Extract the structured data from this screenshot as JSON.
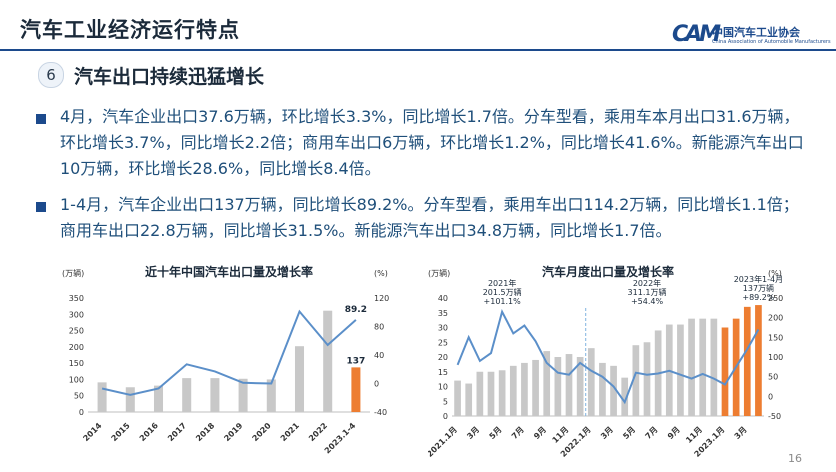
{
  "header": {
    "title": "汽车工业经济运行特点",
    "logo_cn": "中国汽车工业协会",
    "logo_en": "China Association of Automobile Manufacturers",
    "logo_mark": "CAM"
  },
  "section": {
    "number": "6",
    "title": "汽车出口持续迅猛增长"
  },
  "paragraphs": [
    "4月，汽车企业出口37.6万辆，环比增长3.3%，同比增长1.7倍。分车型看，乘用车本月出口31.6万辆，环比增长3.7%，同比增长2.2倍；商用车出口6万辆，环比增长1.2%，同比增长41.6%。新能源汽车出口10万辆，环比增长28.6%，同比增长8.4倍。",
    "1-4月，汽车企业出口137万辆，同比增长89.2%。分车型看，乘用车出口114.2万辆，同比增长1.1倍；商用车出口22.8万辆，同比增长31.5%。新能源汽车出口34.8万辆，同比增长1.7倍。"
  ],
  "page_number": "16",
  "colors": {
    "bar": "#c8c8c8",
    "bar_highlight": "#ed7d31",
    "line": "#5b8fc9",
    "brand": "#1c4a8c"
  },
  "chart_data": [
    {
      "type": "bar",
      "title": "近十年中国汽车出口量及增长率",
      "y_left_unit": "(万辆)",
      "y_right_unit": "(%)",
      "ylim_left": [
        0,
        350
      ],
      "yticks_left": [
        "350",
        "300",
        "250",
        "200",
        "150",
        "100",
        "50",
        "0"
      ],
      "ylim_right": [
        -40,
        120
      ],
      "yticks_right": [
        "120",
        "80",
        "40",
        "0",
        "-40"
      ],
      "categories": [
        "2014",
        "2015",
        "2016",
        "2017",
        "2018",
        "2019",
        "2020",
        "2021",
        "2022",
        "2023.1-4"
      ],
      "series": [
        {
          "kind": "bar",
          "axis": "left",
          "values": [
            91,
            76,
            81,
            104,
            104,
            102,
            100,
            202,
            311,
            137
          ]
        },
        {
          "kind": "line",
          "axis": "right",
          "values": [
            -7,
            -16,
            -7,
            27,
            17,
            1,
            0,
            101,
            54,
            89.2
          ]
        }
      ],
      "annotations": {
        "last_bar_label": "137",
        "last_line_label": "89.2"
      }
    },
    {
      "type": "bar",
      "title": "汽车月度出口量及增长率",
      "y_left_unit": "(万辆)",
      "y_right_unit": "(%)",
      "ylim_left": [
        0,
        40
      ],
      "yticks_left": [
        "40",
        "35",
        "30",
        "25",
        "20",
        "15",
        "10",
        "5",
        "0"
      ],
      "ylim_right": [
        -50,
        250
      ],
      "yticks_right": [
        "250",
        "200",
        "150",
        "100",
        "50",
        "0",
        "-50"
      ],
      "x_labels": [
        "2021.1月",
        "3月",
        "5月",
        "7月",
        "9月",
        "11月",
        "2022.1月",
        "3月",
        "5月",
        "7月",
        "9月",
        "11月",
        "2023.1月",
        "3月"
      ],
      "series": [
        {
          "kind": "bar",
          "axis": "left",
          "values": [
            12,
            11,
            15,
            15,
            15.5,
            17,
            18,
            19,
            22,
            20,
            21,
            20,
            23,
            18,
            17,
            13,
            24,
            25,
            29,
            31,
            31,
            33,
            33,
            33,
            30,
            33,
            37,
            37.6
          ]
        },
        {
          "kind": "line",
          "axis": "right",
          "values": [
            80,
            150,
            90,
            110,
            215,
            160,
            180,
            140,
            85,
            60,
            55,
            85,
            65,
            50,
            25,
            -15,
            60,
            55,
            58,
            65,
            55,
            45,
            57,
            45,
            30,
            75,
            120,
            170
          ]
        }
      ],
      "annotations": [
        {
          "text": "2021年\n201.5万辆\n+101.1%"
        },
        {
          "text": "2022年\n311.1万辆\n+54.4%"
        },
        {
          "text": "2023年1-4月\n137万辆\n+89.2%"
        }
      ]
    }
  ]
}
